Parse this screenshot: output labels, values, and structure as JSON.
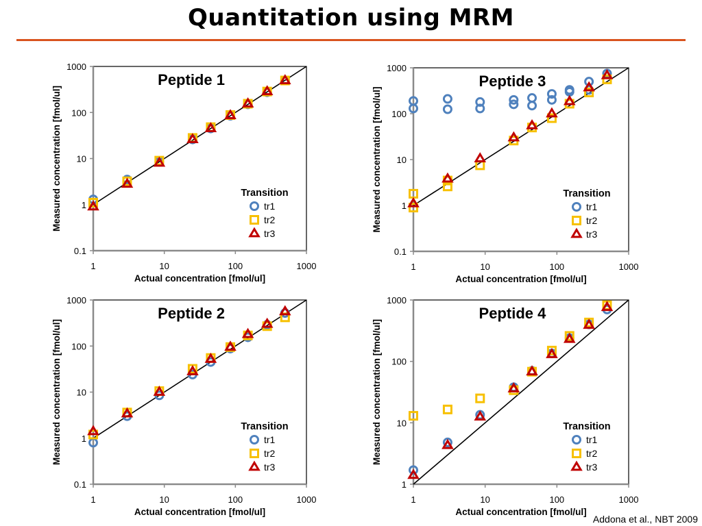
{
  "slide": {
    "title": "Quantitation using MRM",
    "citation": "Addona et al., NBT 2009",
    "accent_color": "#d9531e"
  },
  "series_style": {
    "tr1": {
      "marker": "circle",
      "color": "#4f81bd"
    },
    "tr2": {
      "marker": "square",
      "color": "#f7c000"
    },
    "tr3": {
      "marker": "triangle",
      "color": "#c00000"
    }
  },
  "chart_data": [
    {
      "type": "scatter",
      "title": "Peptide 1",
      "xlabel": "Actual concentration [fmol/ul]",
      "ylabel": "Measured concentration [fmol/ul]",
      "xscale": "log",
      "yscale": "log",
      "xlim": [
        1,
        1000
      ],
      "ylim": [
        0.1,
        1000
      ],
      "xticks": [
        "1",
        "10",
        "100",
        "1000"
      ],
      "yticks": [
        "0.1",
        "1",
        "10",
        "100",
        "1000"
      ],
      "legend_title": "Transition",
      "legend_position": "lower-right",
      "grid": false,
      "reference_line": "y = x",
      "x": [
        1,
        3,
        8.5,
        25,
        45,
        85,
        150,
        280,
        500
      ],
      "series": [
        {
          "name": "tr1",
          "values": [
            1.3,
            3.5,
            8.5,
            26,
            45,
            85,
            150,
            275,
            500
          ]
        },
        {
          "name": "tr2",
          "values": [
            1.1,
            3.2,
            9,
            28,
            48,
            88,
            155,
            285,
            495
          ]
        },
        {
          "name": "tr3",
          "values": [
            0.9,
            2.8,
            8,
            26,
            45,
            86,
            155,
            285,
            495
          ]
        }
      ]
    },
    {
      "type": "scatter",
      "title": "Peptide 3",
      "xlabel": "Actual concentration [fmol/ul]",
      "ylabel": "Measured concentration [fmol/ul]",
      "xscale": "log",
      "yscale": "log",
      "xlim": [
        1,
        1000
      ],
      "ylim": [
        0.1,
        1000
      ],
      "xticks": [
        "1",
        "10",
        "100",
        "1000"
      ],
      "yticks": [
        "0.1",
        "1",
        "10",
        "100",
        "1000"
      ],
      "legend_title": "Transition",
      "legend_position": "lower-right",
      "grid": false,
      "reference_line": "y = x",
      "series": [
        {
          "name": "tr1",
          "x": [
            1,
            1,
            3,
            3,
            8.5,
            8.5,
            25,
            25,
            45,
            45,
            85,
            85,
            150,
            150,
            280,
            280,
            500
          ],
          "values": [
            190,
            130,
            210,
            125,
            180,
            130,
            200,
            160,
            220,
            150,
            270,
            200,
            330,
            300,
            500,
            330,
            750
          ]
        },
        {
          "name": "tr2",
          "x": [
            1,
            1,
            3,
            3,
            8.5,
            25,
            45,
            85,
            150,
            280,
            500
          ],
          "values": [
            1.8,
            0.9,
            3.5,
            2.6,
            7.5,
            26,
            50,
            80,
            165,
            290,
            560
          ]
        },
        {
          "name": "tr3",
          "x": [
            1,
            3,
            8.5,
            25,
            45,
            85,
            150,
            280,
            500
          ],
          "values": [
            1.1,
            3.8,
            10.5,
            30,
            55,
            100,
            185,
            370,
            680
          ]
        }
      ]
    },
    {
      "type": "scatter",
      "title": "Peptide 2",
      "xlabel": "Actual concentration [fmol/ul]",
      "ylabel": "Measured concentration [fmol/ul]",
      "xscale": "log",
      "yscale": "log",
      "xlim": [
        1,
        1000
      ],
      "ylim": [
        0.1,
        1000
      ],
      "xticks": [
        "1",
        "10",
        "100",
        "1000"
      ],
      "yticks": [
        "0.1",
        "1",
        "10",
        "100",
        "1000"
      ],
      "legend_title": "Transition",
      "legend_position": "lower-right",
      "grid": false,
      "reference_line": "y = x",
      "x": [
        1,
        3,
        8.5,
        25,
        45,
        85,
        150,
        280,
        500
      ],
      "series": [
        {
          "name": "tr1",
          "values": [
            0.8,
            3,
            8.5,
            24,
            45,
            88,
            155,
            290,
            520
          ]
        },
        {
          "name": "tr2",
          "values": [
            1.2,
            3.6,
            10.5,
            32,
            55,
            95,
            170,
            270,
            420
          ]
        },
        {
          "name": "tr3",
          "values": [
            1.4,
            3.4,
            10,
            28,
            52,
            95,
            180,
            300,
            560
          ]
        }
      ]
    },
    {
      "type": "scatter",
      "title": "Peptide 4",
      "xlabel": "Actual concentration [fmol/ul]",
      "ylabel": "Measured concentration [fmol/ul]",
      "xscale": "log",
      "yscale": "log",
      "xlim": [
        1,
        1000
      ],
      "ylim": [
        1,
        1000
      ],
      "xticks": [
        "1",
        "10",
        "100",
        "1000"
      ],
      "yticks": [
        "1",
        "10",
        "100",
        "1000"
      ],
      "legend_title": "Transition",
      "legend_position": "lower-right",
      "grid": false,
      "reference_line": "y = x",
      "x": [
        1,
        3,
        8.5,
        25,
        45,
        85,
        150,
        280,
        500
      ],
      "series": [
        {
          "name": "tr1",
          "values": [
            1.7,
            4.8,
            13.5,
            38,
            70,
            135,
            240,
            400,
            700
          ]
        },
        {
          "name": "tr2",
          "values": [
            13,
            16.5,
            25,
            34,
            68,
            150,
            260,
            430,
            820
          ]
        },
        {
          "name": "tr3",
          "values": [
            1.4,
            4.3,
            12.5,
            36,
            68,
            130,
            230,
            390,
            760
          ]
        }
      ]
    }
  ]
}
